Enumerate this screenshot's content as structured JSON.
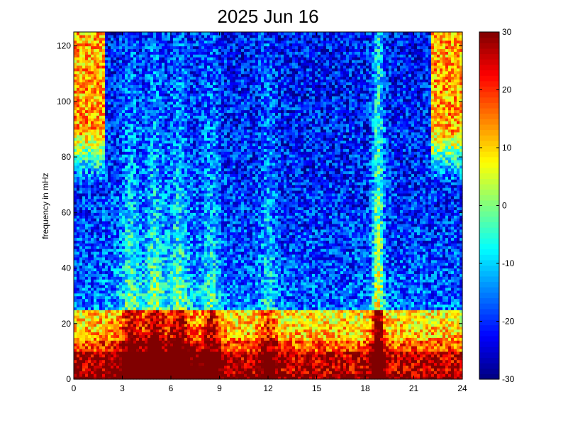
{
  "chart_data": {
    "type": "heatmap",
    "title": "2025 Jun 16",
    "xlabel": "",
    "ylabel": "frequency in mHz",
    "xlim": [
      0,
      24
    ],
    "ylim": [
      0,
      125
    ],
    "x_ticks": [
      0,
      3,
      6,
      9,
      12,
      15,
      18,
      21,
      24
    ],
    "y_ticks": [
      0,
      20,
      40,
      60,
      80,
      100,
      120
    ],
    "colorbar": {
      "colormap": "jet",
      "range": [
        -30,
        30
      ],
      "ticks": [
        -30,
        -20,
        -10,
        0,
        10,
        20,
        30
      ]
    },
    "grid": false,
    "features": {
      "low_freq_band_mHz": [
        0,
        10
      ],
      "low_freq_band_level": 30,
      "broadband_bursts_hours": [
        3.5,
        5.0,
        6.5,
        8.5,
        12.0,
        18.8
      ],
      "strongest_burst_hour": 18.8,
      "high_freq_hot_regions_hours": [
        [
          0,
          2
        ],
        [
          22,
          24
        ]
      ]
    }
  }
}
